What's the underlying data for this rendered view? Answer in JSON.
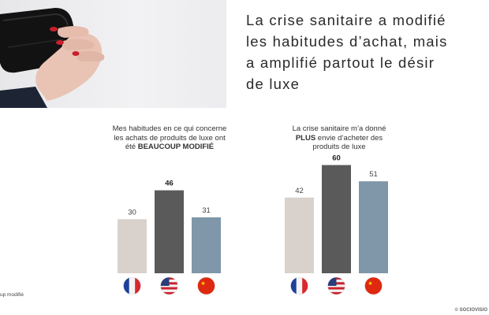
{
  "headline": {
    "lines": [
      "La crise sanitaire a modifié",
      "les habitudes d’achat, mais",
      "a amplifié partout le désir",
      "de luxe"
    ]
  },
  "chart_data": [
    {
      "type": "bar",
      "title_lines": [
        "Mes habitudes en ce qui concerne",
        "les achats de produits de luxe ont"
      ],
      "title_line3_prefix": "été ",
      "title_line3_bold": "BEAUCOUP MODIFIÉ",
      "categories": [
        "France",
        "États-Unis",
        "Chine"
      ],
      "values": [
        30,
        46,
        31
      ],
      "value_labels": [
        "30",
        "46",
        "31"
      ],
      "highlight_index": 1,
      "colors": [
        "#d9d2cc",
        "#5a5a5a",
        "#7f97a8"
      ],
      "ylim": [
        0,
        60
      ]
    },
    {
      "type": "bar",
      "title_line1": "La crise sanitaire m’a donné",
      "title_line2_bold": "PLUS",
      "title_line2_rest": " envie d’acheter des",
      "title_line3": "produits de luxe",
      "categories": [
        "France",
        "États-Unis",
        "Chine"
      ],
      "values": [
        42,
        60,
        51
      ],
      "value_labels": [
        "42",
        "60",
        "51"
      ],
      "highlight_index": 1,
      "colors": [
        "#d9d2cc",
        "#5a5a5a",
        "#7f97a8"
      ],
      "ylim": [
        0,
        60
      ]
    }
  ],
  "flags": [
    "france-flag-icon",
    "usa-flag-icon",
    "china-flag-icon"
  ],
  "footer": {
    "legend_note": "up modifié",
    "copyright": "© SOCIOVISIO"
  }
}
